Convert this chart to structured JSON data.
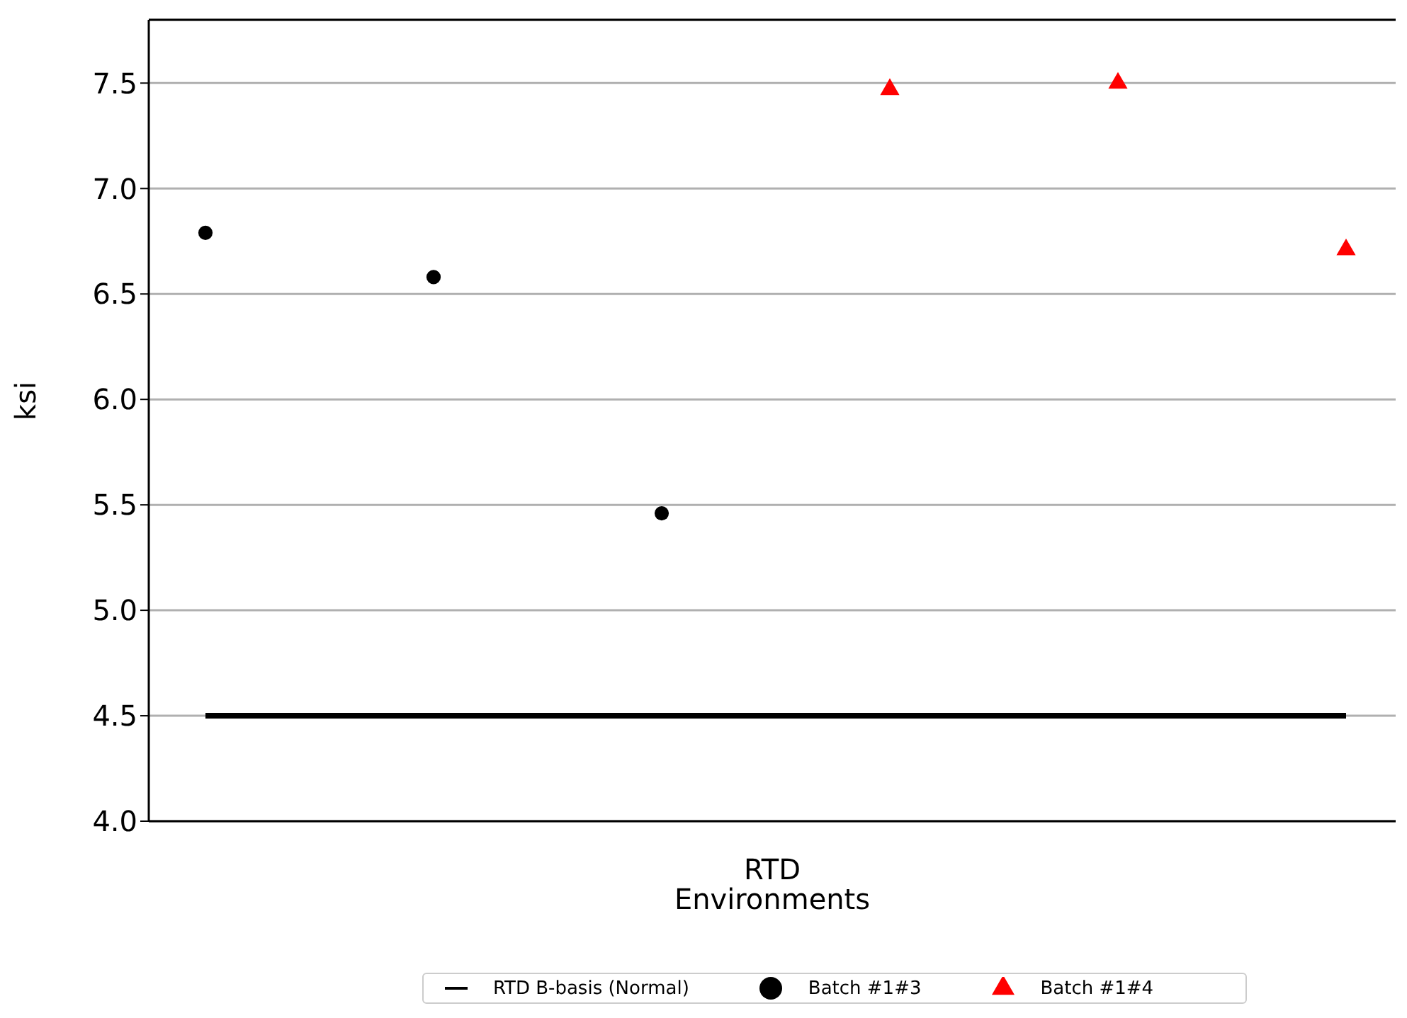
{
  "chart_data": {
    "type": "scatter",
    "xlabel": "Environments",
    "ylabel": "ksi",
    "categories": [
      null,
      null,
      null,
      null,
      null,
      null
    ],
    "annotations": [
      "RTD"
    ],
    "ylim": [
      4.0,
      7.8
    ],
    "yticks": [
      {
        "value": 4,
        "label": "4.0"
      },
      {
        "value": 4.5,
        "label": "4.5"
      },
      {
        "value": 5,
        "label": "5.0"
      },
      {
        "value": 5.5,
        "label": "5.5"
      },
      {
        "value": 6,
        "label": "6.0"
      },
      {
        "value": 6.5,
        "label": "6.5"
      },
      {
        "value": 7,
        "label": "7.0"
      },
      {
        "value": 7.5,
        "label": "7.5"
      }
    ],
    "grid": "y",
    "legend": "bottom",
    "series": [
      {
        "name": "RTD B-basis (Normal)",
        "type": "line",
        "color": "#000000",
        "marker": "none",
        "line_style": "solid",
        "values": [
          4.5,
          4.5,
          4.5,
          4.5,
          4.5,
          4.5
        ]
      },
      {
        "name": "Batch #1#3",
        "color": "#000000",
        "marker": "circle",
        "values": [
          6.79,
          6.58,
          5.46,
          null,
          null,
          null
        ]
      },
      {
        "name": "Batch #1#4",
        "color": "#ff0000",
        "marker": "triangle",
        "values": [
          null,
          null,
          null,
          7.47,
          7.5,
          6.71
        ]
      }
    ]
  }
}
